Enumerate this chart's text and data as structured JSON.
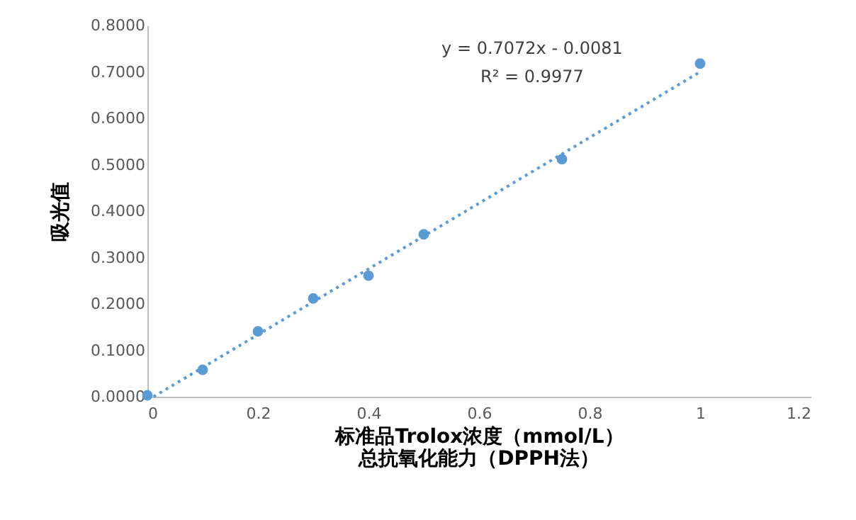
{
  "chart_data": {
    "type": "scatter",
    "ylabel": "吸光值",
    "xlabel": "标准品Trolox浓度（mmol/L）",
    "title": "总抗氧化能力（DPPH法）",
    "x": [
      0,
      0.1,
      0.2,
      0.3,
      0.4,
      0.5,
      0.75,
      1
    ],
    "series": [
      {
        "color": "#5b9bd5",
        "values": [
          0.003,
          0.058,
          0.141,
          0.212,
          0.261,
          0.35,
          0.512,
          0.718
        ],
        "marker": "circle"
      },
      {
        "type": "line",
        "color": "#5b9bd5",
        "x": [
          0.011,
          1
        ],
        "values": [
          0,
          0.7
        ],
        "line_style": "dotted",
        "marker": "none"
      }
    ],
    "annotations": [
      "y = 0.7072x - 0.0081",
      "R² = 0.9977"
    ],
    "xlim": [
      0,
      1.2
    ],
    "xticks": [
      0,
      0.2,
      0.4,
      0.6,
      0.8,
      1,
      1.2
    ],
    "ylim": [
      0,
      0.8
    ],
    "yticks": [
      {
        "value": 0,
        "label": "0.0000"
      },
      {
        "value": 0.1,
        "label": "0.1000"
      },
      {
        "value": 0.2,
        "label": "0.2000"
      },
      {
        "value": 0.3,
        "label": "0.3000"
      },
      {
        "value": 0.4,
        "label": "0.4000"
      },
      {
        "value": 0.5,
        "label": "0.5000"
      },
      {
        "value": 0.6,
        "label": "0.6000"
      },
      {
        "value": 0.7,
        "label": "0.7000"
      },
      {
        "value": 0.8,
        "label": "0.8000"
      }
    ],
    "grid": false
  }
}
